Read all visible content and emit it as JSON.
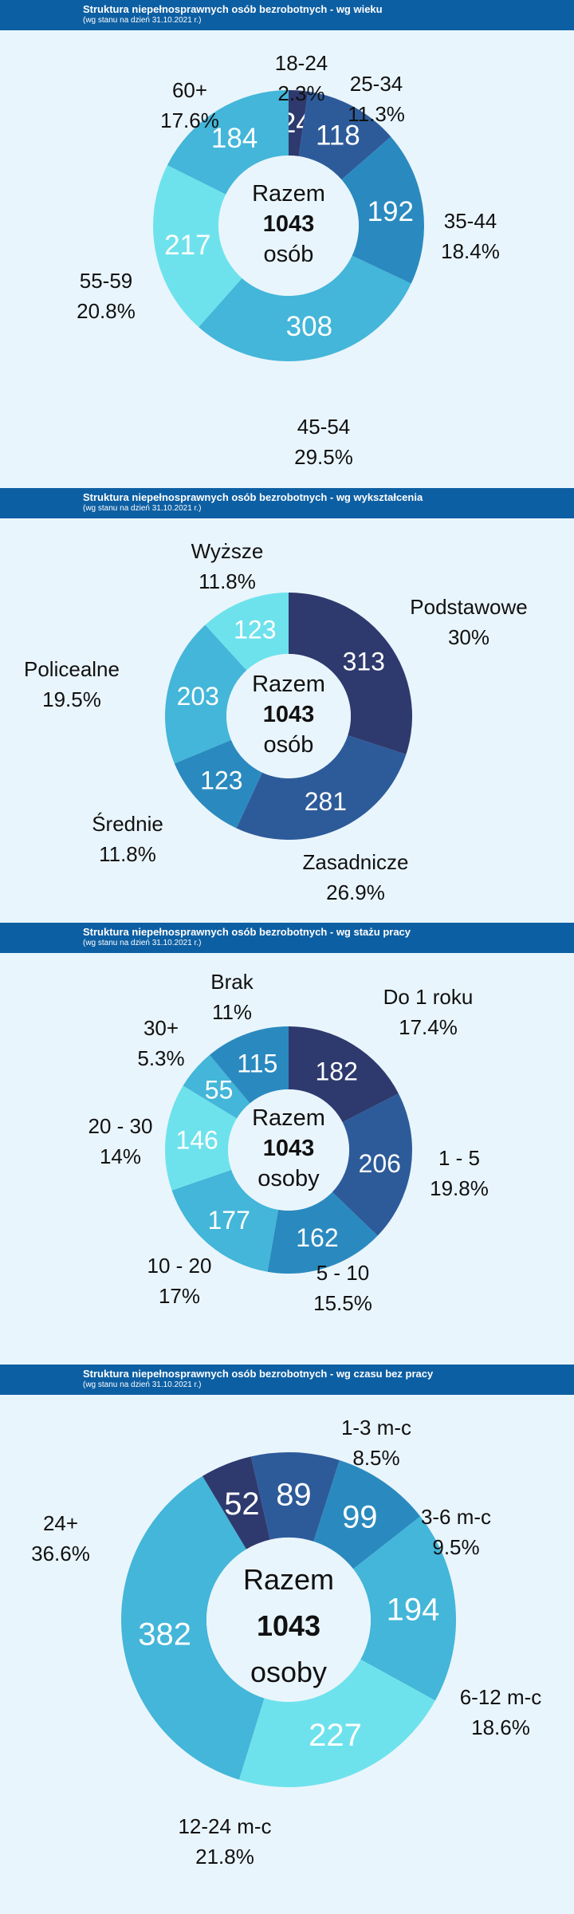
{
  "colors": {
    "header_bg": "#0d5fa3",
    "page_bg": "#e9f5fc",
    "palette_age": [
      "#2e3a6e",
      "#2d5b9a",
      "#2a8abf",
      "#43b6d9",
      "#6ee2ec",
      "#43b6d9"
    ]
  },
  "sections": [
    {
      "header": {
        "title": "Struktura niepełnosprawnych osób bezrobotnych - wg wieku",
        "subtitle": "(wg stanu na dzień 31.10.2021 r.)"
      },
      "center": {
        "line1": "Razem",
        "line2": "1043",
        "line3": "osób"
      },
      "chart_data": {
        "type": "pie",
        "donut": true,
        "series": [
          {
            "category": "18-24",
            "value": 24,
            "percent": "2.3%",
            "color": "#2e3a6e"
          },
          {
            "category": "25-34",
            "value": 118,
            "percent": "11.3%",
            "color": "#2d5b9a"
          },
          {
            "category": "35-44",
            "value": 192,
            "percent": "18.4%",
            "color": "#2a8abf"
          },
          {
            "category": "45-54",
            "value": 308,
            "percent": "29.5%",
            "color": "#43b6d9"
          },
          {
            "category": "55-59",
            "value": 217,
            "percent": "20.8%",
            "color": "#6ee2ec"
          },
          {
            "category": "60+",
            "value": 184,
            "percent": "17.6%",
            "color": "#43b6d9"
          }
        ]
      }
    },
    {
      "header": {
        "title": "Struktura niepełnosprawnych osób bezrobotnych - wg wykształcenia",
        "subtitle": "(wg stanu na dzień 31.10.2021 r.)"
      },
      "center": {
        "line1": "Razem",
        "line2": "1043",
        "line3": "osób"
      },
      "chart_data": {
        "type": "pie",
        "donut": true,
        "series": [
          {
            "category": "Podstawowe",
            "value": 313,
            "percent": "30%",
            "color": "#2e3a6e"
          },
          {
            "category": "Zasadnicze",
            "value": 281,
            "percent": "26.9%",
            "color": "#2d5b9a"
          },
          {
            "category": "Średnie",
            "value": 123,
            "percent": "11.8%",
            "color": "#2a8abf"
          },
          {
            "category": "Policealne",
            "value": 203,
            "percent": "19.5%",
            "color": "#43b6d9"
          },
          {
            "category": "Wyższe",
            "value": 123,
            "percent": "11.8%",
            "color": "#6ee2ec"
          }
        ]
      }
    },
    {
      "header": {
        "title": "Struktura niepełnosprawnych osób bezrobotnych - wg stażu pracy",
        "subtitle": "(wg stanu na dzień 31.10.2021 r.)"
      },
      "center": {
        "line1": "Razem",
        "line2": "1043",
        "line3": "osoby"
      },
      "chart_data": {
        "type": "pie",
        "donut": true,
        "series": [
          {
            "category": "Do 1 roku",
            "value": 182,
            "percent": "17.4%",
            "color": "#2e3a6e"
          },
          {
            "category": "1 - 5",
            "value": 206,
            "percent": "19.8%",
            "color": "#2d5b9a"
          },
          {
            "category": "5 - 10",
            "value": 162,
            "percent": "15.5%",
            "color": "#2a8abf"
          },
          {
            "category": "10 - 20",
            "value": 177,
            "percent": "17%",
            "color": "#43b6d9"
          },
          {
            "category": "20 - 30",
            "value": 146,
            "percent": "14%",
            "color": "#6ee2ec"
          },
          {
            "category": "30+",
            "value": 55,
            "percent": "5.3%",
            "color": "#43b6d9"
          },
          {
            "category": "Brak",
            "value": 115,
            "percent": "11%",
            "color": "#2a8abf"
          }
        ]
      }
    },
    {
      "header": {
        "title": "Struktura niepełnosprawnych osób bezrobotnych - wg czasu bez pracy",
        "subtitle": "(wg stanu na dzień 31.10.2021 r.)"
      },
      "center": {
        "line1": "Razem",
        "line2": "1043",
        "line3": "osoby"
      },
      "chart_data": {
        "type": "pie",
        "donut": true,
        "series": [
          {
            "category": "1-3 m-c",
            "value": 89,
            "percent": "8.5%",
            "color": "#2d5b9a"
          },
          {
            "category": "3-6 m-c",
            "value": 99,
            "percent": "9.5%",
            "color": "#2a8abf"
          },
          {
            "category": "6-12 m-c",
            "value": 194,
            "percent": "18.6%",
            "color": "#43b6d9"
          },
          {
            "category": "12-24 m-c",
            "value": 227,
            "percent": "21.8%",
            "color": "#6ee2ec"
          },
          {
            "category": "24+",
            "value": 382,
            "percent": "36.6%",
            "color": "#43b6d9"
          },
          {
            "category": "",
            "value": 52,
            "percent": "",
            "color": "#2e3a6e"
          }
        ]
      }
    }
  ]
}
